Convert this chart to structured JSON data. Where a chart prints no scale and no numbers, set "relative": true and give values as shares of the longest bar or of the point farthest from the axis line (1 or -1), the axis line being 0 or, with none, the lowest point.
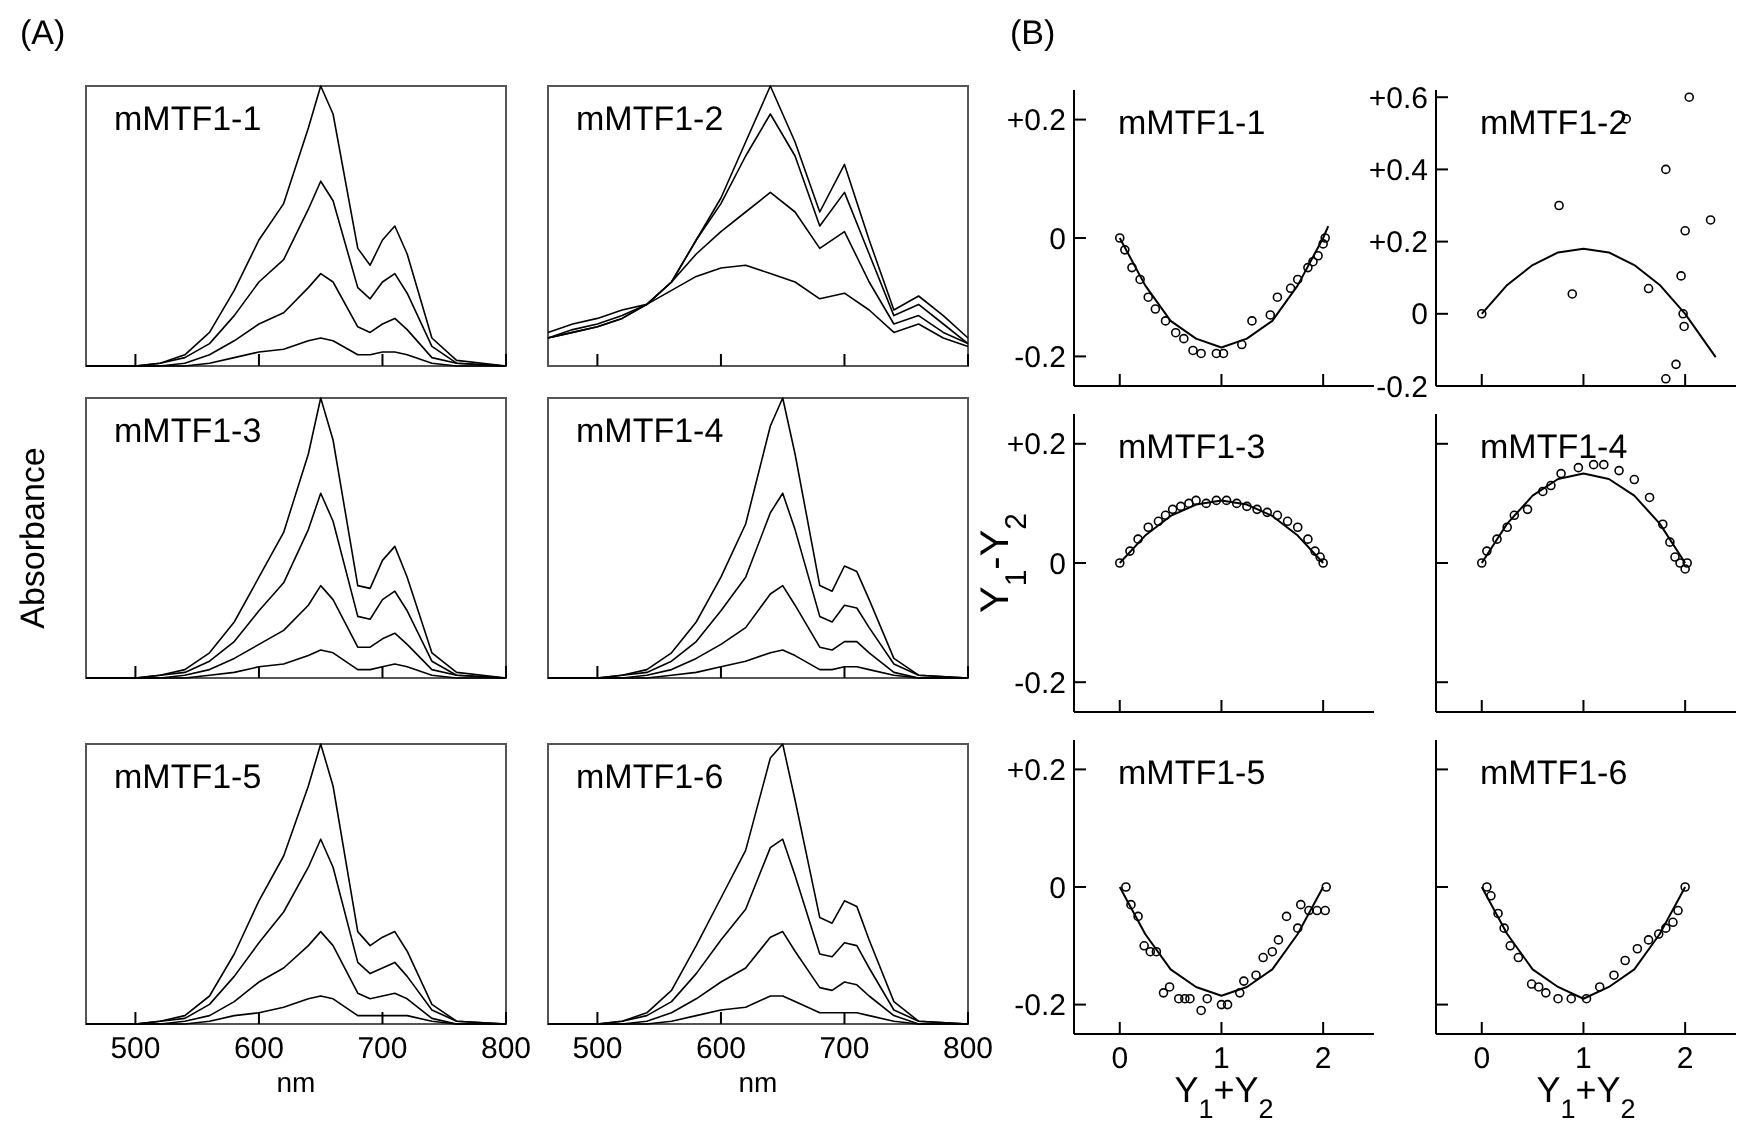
{
  "chart_data": [
    {
      "type": "line",
      "title": "mMTF1-1",
      "annotations": [
        "(A)"
      ],
      "relative": true,
      "tick_labels": false,
      "xlim": [
        460,
        800
      ],
      "xticks": [
        500,
        600,
        700,
        800
      ],
      "x": [
        460,
        500,
        520,
        540,
        560,
        580,
        600,
        620,
        640,
        650,
        660,
        680,
        690,
        700,
        710,
        720,
        740,
        760,
        800
      ],
      "series": [
        {
          "color": "#000000",
          "values": [
            0,
            0,
            0.01,
            0.04,
            0.12,
            0.27,
            0.45,
            0.58,
            0.85,
            1.0,
            0.9,
            0.42,
            0.36,
            0.45,
            0.5,
            0.4,
            0.1,
            0.02,
            0
          ]
        },
        {
          "color": "#000000",
          "values": [
            0,
            0,
            0.01,
            0.03,
            0.08,
            0.18,
            0.3,
            0.38,
            0.56,
            0.66,
            0.59,
            0.28,
            0.24,
            0.3,
            0.33,
            0.26,
            0.07,
            0.01,
            0
          ]
        },
        {
          "color": "#000000",
          "values": [
            0,
            0,
            0,
            0.01,
            0.04,
            0.09,
            0.15,
            0.19,
            0.28,
            0.33,
            0.3,
            0.14,
            0.12,
            0.15,
            0.17,
            0.13,
            0.03,
            0.01,
            0
          ]
        },
        {
          "color": "#000000",
          "values": [
            0,
            0,
            0,
            0,
            0.01,
            0.03,
            0.05,
            0.06,
            0.09,
            0.1,
            0.09,
            0.04,
            0.04,
            0.05,
            0.05,
            0.04,
            0.01,
            0,
            0
          ]
        }
      ]
    },
    {
      "type": "line",
      "title": "mMTF1-2",
      "relative": true,
      "tick_labels": false,
      "xlim": [
        460,
        800
      ],
      "xticks": [
        500,
        600,
        700,
        800
      ],
      "x": [
        460,
        480,
        500,
        520,
        540,
        560,
        580,
        600,
        620,
        640,
        660,
        680,
        700,
        720,
        740,
        760,
        780,
        800
      ],
      "series": [
        {
          "color": "#000000",
          "values": [
            0.12,
            0.15,
            0.17,
            0.2,
            0.22,
            0.3,
            0.45,
            0.6,
            0.8,
            1.0,
            0.8,
            0.55,
            0.72,
            0.45,
            0.2,
            0.25,
            0.18,
            0.1
          ]
        },
        {
          "color": "#000000",
          "values": [
            0.1,
            0.13,
            0.15,
            0.18,
            0.22,
            0.3,
            0.45,
            0.58,
            0.75,
            0.9,
            0.75,
            0.5,
            0.62,
            0.4,
            0.18,
            0.22,
            0.15,
            0.08
          ]
        },
        {
          "color": "#000000",
          "values": [
            0.1,
            0.12,
            0.14,
            0.17,
            0.22,
            0.3,
            0.4,
            0.48,
            0.55,
            0.62,
            0.55,
            0.42,
            0.48,
            0.3,
            0.15,
            0.18,
            0.12,
            0.08
          ]
        },
        {
          "color": "#000000",
          "values": [
            0.1,
            0.12,
            0.14,
            0.17,
            0.22,
            0.27,
            0.32,
            0.35,
            0.36,
            0.33,
            0.3,
            0.24,
            0.26,
            0.2,
            0.12,
            0.15,
            0.1,
            0.07
          ]
        }
      ]
    },
    {
      "type": "line",
      "title": "mMTF1-3",
      "ylabel": "Absorbance",
      "relative": true,
      "tick_labels": false,
      "xlim": [
        460,
        800
      ],
      "xticks": [
        500,
        600,
        700,
        800
      ],
      "x": [
        460,
        500,
        520,
        540,
        560,
        580,
        600,
        620,
        640,
        650,
        660,
        680,
        690,
        700,
        710,
        720,
        740,
        760,
        800
      ],
      "series": [
        {
          "color": "#000000",
          "values": [
            0,
            0,
            0.01,
            0.03,
            0.09,
            0.2,
            0.36,
            0.52,
            0.8,
            1.0,
            0.85,
            0.33,
            0.32,
            0.42,
            0.47,
            0.36,
            0.09,
            0.02,
            0
          ]
        },
        {
          "color": "#000000",
          "values": [
            0,
            0,
            0.01,
            0.02,
            0.06,
            0.13,
            0.24,
            0.34,
            0.53,
            0.66,
            0.56,
            0.22,
            0.21,
            0.28,
            0.31,
            0.24,
            0.06,
            0.01,
            0
          ]
        },
        {
          "color": "#000000",
          "values": [
            0,
            0,
            0,
            0.01,
            0.03,
            0.07,
            0.12,
            0.17,
            0.26,
            0.33,
            0.28,
            0.11,
            0.11,
            0.14,
            0.16,
            0.12,
            0.03,
            0.01,
            0
          ]
        },
        {
          "color": "#000000",
          "values": [
            0,
            0,
            0,
            0,
            0.01,
            0.02,
            0.04,
            0.05,
            0.08,
            0.1,
            0.09,
            0.03,
            0.03,
            0.04,
            0.05,
            0.04,
            0.01,
            0,
            0
          ]
        }
      ]
    },
    {
      "type": "line",
      "title": "mMTF1-4",
      "relative": true,
      "tick_labels": false,
      "xlim": [
        460,
        800
      ],
      "xticks": [
        500,
        600,
        700,
        800
      ],
      "x": [
        460,
        500,
        520,
        540,
        560,
        580,
        600,
        620,
        640,
        650,
        660,
        680,
        690,
        700,
        710,
        720,
        740,
        760,
        800
      ],
      "series": [
        {
          "color": "#000000",
          "values": [
            0,
            0,
            0.01,
            0.03,
            0.09,
            0.2,
            0.36,
            0.55,
            0.9,
            1.0,
            0.8,
            0.33,
            0.31,
            0.4,
            0.38,
            0.28,
            0.07,
            0.01,
            0
          ]
        },
        {
          "color": "#000000",
          "values": [
            0,
            0,
            0.01,
            0.02,
            0.06,
            0.13,
            0.24,
            0.36,
            0.59,
            0.66,
            0.53,
            0.22,
            0.2,
            0.26,
            0.25,
            0.18,
            0.05,
            0.01,
            0
          ]
        },
        {
          "color": "#000000",
          "values": [
            0,
            0,
            0,
            0.01,
            0.03,
            0.07,
            0.12,
            0.18,
            0.3,
            0.33,
            0.26,
            0.11,
            0.1,
            0.13,
            0.13,
            0.09,
            0.02,
            0,
            0
          ]
        },
        {
          "color": "#000000",
          "values": [
            0,
            0,
            0,
            0,
            0.01,
            0.02,
            0.04,
            0.06,
            0.09,
            0.1,
            0.08,
            0.03,
            0.03,
            0.04,
            0.04,
            0.03,
            0.01,
            0,
            0
          ]
        }
      ]
    },
    {
      "type": "line",
      "title": "mMTF1-5",
      "xlabel": "nm",
      "relative": true,
      "tick_labels": "x",
      "xlim": [
        460,
        800
      ],
      "xticks": [
        500,
        600,
        700,
        800
      ],
      "x": [
        460,
        500,
        520,
        540,
        560,
        580,
        600,
        620,
        640,
        650,
        660,
        680,
        690,
        700,
        710,
        720,
        740,
        760,
        800
      ],
      "series": [
        {
          "color": "#000000",
          "values": [
            0,
            0,
            0.01,
            0.03,
            0.1,
            0.25,
            0.44,
            0.6,
            0.85,
            1.0,
            0.85,
            0.33,
            0.28,
            0.31,
            0.33,
            0.26,
            0.07,
            0.01,
            0
          ]
        },
        {
          "color": "#000000",
          "values": [
            0,
            0,
            0.01,
            0.02,
            0.07,
            0.17,
            0.29,
            0.4,
            0.56,
            0.66,
            0.56,
            0.22,
            0.18,
            0.2,
            0.22,
            0.17,
            0.05,
            0.01,
            0
          ]
        },
        {
          "color": "#000000",
          "values": [
            0,
            0,
            0,
            0.01,
            0.03,
            0.08,
            0.15,
            0.2,
            0.28,
            0.33,
            0.28,
            0.11,
            0.09,
            0.1,
            0.11,
            0.09,
            0.02,
            0,
            0
          ]
        },
        {
          "color": "#000000",
          "values": [
            0,
            0,
            0,
            0,
            0.01,
            0.03,
            0.04,
            0.06,
            0.09,
            0.1,
            0.09,
            0.03,
            0.03,
            0.03,
            0.03,
            0.03,
            0.01,
            0,
            0
          ]
        }
      ]
    },
    {
      "type": "line",
      "title": "mMTF1-6",
      "xlabel": "nm",
      "relative": true,
      "tick_labels": "x",
      "xlim": [
        460,
        800
      ],
      "xticks": [
        500,
        600,
        700,
        800
      ],
      "x": [
        460,
        500,
        520,
        540,
        560,
        580,
        600,
        620,
        640,
        650,
        660,
        680,
        690,
        700,
        710,
        720,
        740,
        760,
        800
      ],
      "series": [
        {
          "color": "#000000",
          "values": [
            0,
            0,
            0.01,
            0.04,
            0.12,
            0.28,
            0.45,
            0.62,
            0.95,
            1.0,
            0.8,
            0.38,
            0.36,
            0.44,
            0.42,
            0.3,
            0.08,
            0.01,
            0
          ]
        },
        {
          "color": "#000000",
          "values": [
            0,
            0,
            0.01,
            0.03,
            0.08,
            0.18,
            0.3,
            0.41,
            0.63,
            0.66,
            0.53,
            0.25,
            0.24,
            0.29,
            0.28,
            0.2,
            0.05,
            0.01,
            0
          ]
        },
        {
          "color": "#000000",
          "values": [
            0,
            0,
            0,
            0.01,
            0.04,
            0.09,
            0.15,
            0.2,
            0.31,
            0.33,
            0.26,
            0.13,
            0.12,
            0.15,
            0.14,
            0.1,
            0.03,
            0,
            0
          ]
        },
        {
          "color": "#000000",
          "values": [
            0,
            0,
            0,
            0,
            0.01,
            0.03,
            0.05,
            0.06,
            0.1,
            0.1,
            0.08,
            0.04,
            0.04,
            0.04,
            0.04,
            0.03,
            0.01,
            0,
            0
          ]
        }
      ]
    },
    {
      "type": "scatter",
      "title": "mMTF1-1",
      "annotations": [
        "(B)"
      ],
      "tick_labels": "y",
      "xlim": [
        -0.45,
        2.5
      ],
      "xticks": [
        0,
        1,
        2
      ],
      "ylim": [
        -0.25,
        0.25
      ],
      "yticks": [
        {
          "value": 0.2,
          "label": "+0.2"
        },
        {
          "value": 0,
          "label": "0"
        },
        {
          "value": -0.2,
          "label": "-0.2"
        }
      ],
      "series": [
        {
          "marker": "circle",
          "color": "#000000",
          "x": [
            0,
            0.05,
            0.12,
            0.2,
            0.28,
            0.35,
            0.45,
            0.55,
            0.63,
            0.72,
            0.8,
            0.95,
            1.02,
            1.2,
            1.3,
            1.48,
            1.55,
            1.68,
            1.75,
            1.85,
            1.9,
            1.95,
            2.0,
            2.02
          ],
          "values": [
            0,
            -0.02,
            -0.05,
            -0.07,
            -0.1,
            -0.12,
            -0.14,
            -0.16,
            -0.17,
            -0.19,
            -0.195,
            -0.195,
            -0.195,
            -0.18,
            -0.14,
            -0.13,
            -0.1,
            -0.085,
            -0.07,
            -0.05,
            -0.04,
            -0.03,
            -0.01,
            0
          ]
        },
        {
          "type": "line",
          "marker": "none",
          "color": "#000000",
          "x": [
            0,
            0.25,
            0.5,
            0.75,
            1,
            1.25,
            1.5,
            1.75,
            2,
            2.05
          ],
          "values": [
            0,
            -0.08,
            -0.14,
            -0.17,
            -0.185,
            -0.17,
            -0.14,
            -0.08,
            0,
            0.02
          ]
        }
      ]
    },
    {
      "type": "scatter",
      "title": "mMTF1-2",
      "tick_labels": "y",
      "xlim": [
        -0.45,
        2.5
      ],
      "xticks": [
        0,
        1,
        2
      ],
      "ylim": [
        -0.2,
        0.62
      ],
      "yticks": [
        {
          "value": 0.6,
          "label": "+0.6"
        },
        {
          "value": 0.4,
          "label": "+0.4"
        },
        {
          "value": 0.2,
          "label": "+0.2"
        },
        {
          "value": 0,
          "label": "0"
        },
        {
          "value": -0.2,
          "label": "-0.2"
        }
      ],
      "series": [
        {
          "marker": "circle",
          "color": "#000000",
          "x": [
            0,
            0.76,
            0.89,
            1.42,
            1.64,
            1.81,
            2.0,
            1.96,
            1.98,
            1.99,
            1.91,
            1.81,
            2.04,
            2.25
          ],
          "values": [
            0,
            0.3,
            0.055,
            0.54,
            0.07,
            0.4,
            0.23,
            0.105,
            0,
            -0.035,
            -0.14,
            -0.18,
            0.6,
            0.26
          ]
        },
        {
          "type": "line",
          "marker": "none",
          "color": "#000000",
          "x": [
            0,
            0.25,
            0.5,
            0.75,
            1,
            1.25,
            1.5,
            1.75,
            2,
            2.3
          ],
          "values": [
            0,
            0.08,
            0.135,
            0.17,
            0.18,
            0.17,
            0.135,
            0.08,
            0,
            -0.12
          ]
        }
      ]
    },
    {
      "type": "scatter",
      "title": "mMTF1-3",
      "ylabel": "Y$_{1}$-Y$_{2}$",
      "tick_labels": "y",
      "xlim": [
        -0.45,
        2.5
      ],
      "xticks": [
        0,
        1,
        2
      ],
      "ylim": [
        -0.25,
        0.25
      ],
      "yticks": [
        {
          "value": 0.2,
          "label": "+0.2"
        },
        {
          "value": 0,
          "label": "0"
        },
        {
          "value": -0.2,
          "label": "-0.2"
        }
      ],
      "series": [
        {
          "marker": "circle",
          "color": "#000000",
          "x": [
            0,
            0.1,
            0.18,
            0.28,
            0.38,
            0.45,
            0.52,
            0.6,
            0.68,
            0.75,
            0.85,
            0.95,
            1.05,
            1.15,
            1.25,
            1.35,
            1.45,
            1.55,
            1.65,
            1.75,
            1.85,
            1.92,
            1.97,
            2.0
          ],
          "values": [
            0,
            0.02,
            0.04,
            0.06,
            0.07,
            0.08,
            0.09,
            0.095,
            0.1,
            0.105,
            0.1,
            0.105,
            0.105,
            0.1,
            0.095,
            0.09,
            0.085,
            0.08,
            0.07,
            0.06,
            0.04,
            0.02,
            0.01,
            0
          ]
        },
        {
          "type": "line",
          "marker": "none",
          "color": "#000000",
          "x": [
            0,
            0.25,
            0.5,
            0.75,
            1,
            1.25,
            1.5,
            1.75,
            2
          ],
          "values": [
            0,
            0.046,
            0.079,
            0.098,
            0.105,
            0.098,
            0.079,
            0.046,
            0
          ]
        }
      ]
    },
    {
      "type": "scatter",
      "title": "mMTF1-4",
      "tick_labels": false,
      "xlim": [
        -0.45,
        2.5
      ],
      "xticks": [
        0,
        1,
        2
      ],
      "ylim": [
        -0.25,
        0.25
      ],
      "yticks": [
        {
          "value": 0.2,
          "label": null
        },
        {
          "value": 0,
          "label": null
        },
        {
          "value": -0.2,
          "label": null
        }
      ],
      "series": [
        {
          "marker": "circle",
          "color": "#000000",
          "x": [
            0,
            0.05,
            0.15,
            0.25,
            0.32,
            0.45,
            0.6,
            0.68,
            0.78,
            0.95,
            1.1,
            1.2,
            1.35,
            1.5,
            1.65,
            1.78,
            1.85,
            1.9,
            1.95,
            2.0,
            2.02
          ],
          "values": [
            0,
            0.02,
            0.04,
            0.06,
            0.08,
            0.09,
            0.12,
            0.13,
            0.15,
            0.16,
            0.165,
            0.165,
            0.155,
            0.14,
            0.11,
            0.065,
            0.035,
            0.01,
            0,
            -0.01,
            0
          ]
        },
        {
          "type": "line",
          "marker": "none",
          "color": "#000000",
          "x": [
            0,
            0.25,
            0.5,
            0.75,
            1,
            1.25,
            1.5,
            1.75,
            2
          ],
          "values": [
            0,
            0.066,
            0.113,
            0.141,
            0.15,
            0.141,
            0.113,
            0.066,
            0
          ]
        }
      ]
    },
    {
      "type": "scatter",
      "title": "mMTF1-5",
      "xlabel": "Y$_{1}$+Y$_{2}$",
      "xlim": [
        -0.45,
        2.5
      ],
      "xticks": [
        0,
        1,
        2
      ],
      "ylim": [
        -0.25,
        0.25
      ],
      "yticks": [
        {
          "value": 0.2,
          "label": "+0.2"
        },
        {
          "value": 0,
          "label": "0"
        },
        {
          "value": -0.2,
          "label": "-0.2"
        }
      ],
      "series": [
        {
          "marker": "circle",
          "color": "#000000",
          "x": [
            0.06,
            0.11,
            0.18,
            0.24,
            0.3,
            0.36,
            0.43,
            0.49,
            0.58,
            0.64,
            0.69,
            0.8,
            0.86,
            1.0,
            1.06,
            1.18,
            1.22,
            1.34,
            1.41,
            1.5,
            1.56,
            1.64,
            1.75,
            1.78,
            1.86,
            1.94,
            2.02,
            2.03
          ],
          "values": [
            0,
            -0.03,
            -0.05,
            -0.1,
            -0.11,
            -0.11,
            -0.18,
            -0.17,
            -0.19,
            -0.19,
            -0.19,
            -0.21,
            -0.19,
            -0.2,
            -0.2,
            -0.18,
            -0.16,
            -0.15,
            -0.12,
            -0.11,
            -0.09,
            -0.05,
            -0.07,
            -0.03,
            -0.04,
            -0.04,
            -0.04,
            0
          ]
        },
        {
          "type": "line",
          "marker": "none",
          "color": "#000000",
          "x": [
            0,
            0.25,
            0.5,
            0.75,
            1,
            1.25,
            1.5,
            1.75,
            2
          ],
          "values": [
            0,
            -0.08,
            -0.14,
            -0.17,
            -0.185,
            -0.17,
            -0.14,
            -0.08,
            0
          ]
        }
      ]
    },
    {
      "type": "scatter",
      "title": "mMTF1-6",
      "xlabel": "Y$_{1}$+Y$_{2}$",
      "tick_labels": "x",
      "xlim": [
        -0.45,
        2.5
      ],
      "xticks": [
        0,
        1,
        2
      ],
      "ylim": [
        -0.25,
        0.25
      ],
      "yticks": [
        {
          "value": 0.2,
          "label": null
        },
        {
          "value": 0,
          "label": null
        },
        {
          "value": -0.2,
          "label": null
        }
      ],
      "series": [
        {
          "marker": "circle",
          "color": "#000000",
          "x": [
            0.05,
            0.09,
            0.16,
            0.22,
            0.28,
            0.36,
            0.49,
            0.56,
            0.63,
            0.75,
            0.88,
            1.03,
            1.16,
            1.3,
            1.41,
            1.53,
            1.64,
            1.74,
            1.81,
            1.88,
            1.93,
            2.0
          ],
          "values": [
            0,
            -0.015,
            -0.045,
            -0.07,
            -0.1,
            -0.12,
            -0.165,
            -0.17,
            -0.18,
            -0.19,
            -0.19,
            -0.19,
            -0.17,
            -0.15,
            -0.125,
            -0.105,
            -0.09,
            -0.08,
            -0.07,
            -0.06,
            -0.04,
            0
          ]
        },
        {
          "type": "line",
          "marker": "none",
          "color": "#000000",
          "x": [
            0,
            0.25,
            0.5,
            0.75,
            1,
            1.25,
            1.5,
            1.75,
            2
          ],
          "values": [
            0,
            -0.08,
            -0.14,
            -0.17,
            -0.19,
            -0.17,
            -0.14,
            -0.08,
            0
          ]
        }
      ]
    }
  ]
}
